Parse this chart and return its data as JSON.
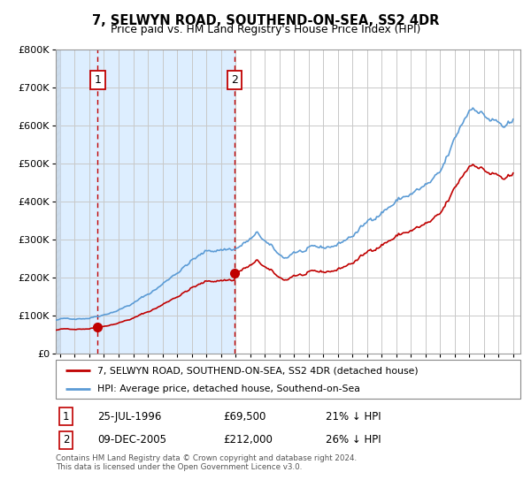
{
  "title": "7, SELWYN ROAD, SOUTHEND-ON-SEA, SS2 4DR",
  "subtitle": "Price paid vs. HM Land Registry's House Price Index (HPI)",
  "ylim": [
    0,
    800000
  ],
  "yticks": [
    0,
    100000,
    200000,
    300000,
    400000,
    500000,
    600000,
    700000,
    800000
  ],
  "ytick_labels": [
    "£0",
    "£100K",
    "£200K",
    "£300K",
    "£400K",
    "£500K",
    "£600K",
    "£700K",
    "£800K"
  ],
  "hpi_color": "#5b9bd5",
  "price_color": "#c00000",
  "dashed_line_color": "#c00000",
  "shade_color": "#ddeeff",
  "background_color": "#ffffff",
  "grid_color": "#c8c8c8",
  "sale1_year": 1996.57,
  "sale1_price": 69500,
  "sale1_label": "1",
  "sale1_date": "25-JUL-1996",
  "sale1_amount": "£69,500",
  "sale1_hpi_pct": "21% ↓ HPI",
  "sale2_year": 2005.94,
  "sale2_price": 212000,
  "sale2_label": "2",
  "sale2_date": "09-DEC-2005",
  "sale2_amount": "£212,000",
  "sale2_hpi_pct": "26% ↓ HPI",
  "legend_property": "7, SELWYN ROAD, SOUTHEND-ON-SEA, SS2 4DR (detached house)",
  "legend_hpi": "HPI: Average price, detached house, Southend-on-Sea",
  "footer": "Contains HM Land Registry data © Crown copyright and database right 2024.\nThis data is licensed under the Open Government Licence v3.0.",
  "xmin": 1993.7,
  "xmax": 2025.5
}
